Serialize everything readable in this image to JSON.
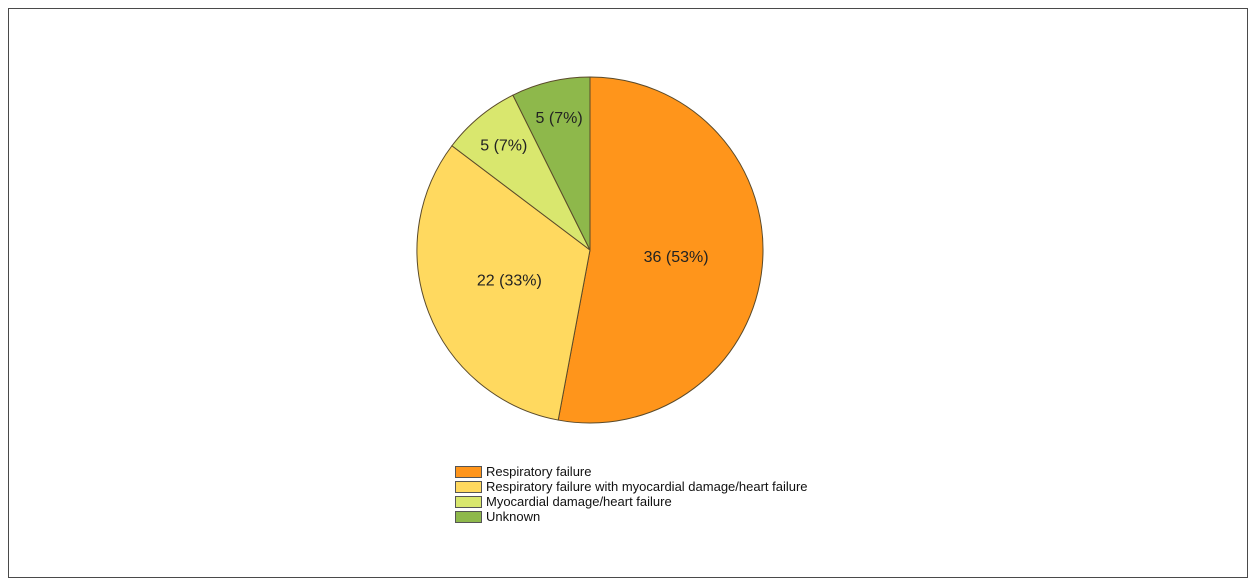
{
  "chart_data": {
    "type": "pie",
    "title": "",
    "legend_position": "bottom",
    "slices": [
      {
        "name": "Respiratory failure",
        "value": 36,
        "label": "36 (53%)",
        "color": "#FF951B"
      },
      {
        "name": "Respiratory failure with myocardial damage/heart failure",
        "value": 22,
        "label": "22 (33%)",
        "color": "#FFD95F"
      },
      {
        "name": "Myocardial damage/heart failure",
        "value": 5,
        "label": "5 (7%)",
        "color": "#D9E76E"
      },
      {
        "name": "Unknown",
        "value": 5,
        "label": "5 (7%)",
        "color": "#8EB84B"
      }
    ]
  }
}
